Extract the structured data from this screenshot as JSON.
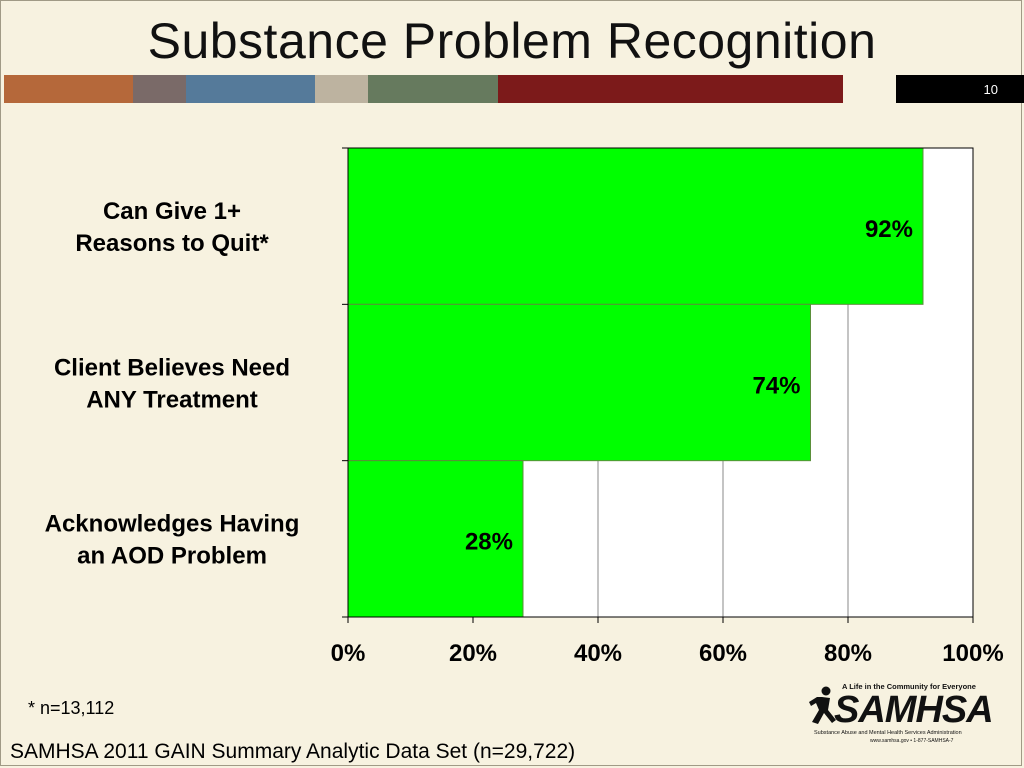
{
  "slide": {
    "title": "Substance Problem Recognition",
    "slide_number": "10",
    "footnote": "* n=13,112",
    "source": "SAMHSA 2011 GAIN Summary Analytic Data Set (n=29,722)",
    "colors": {
      "background": "#f7f2e0",
      "bar_fill": "#00ff00",
      "header_stripes": [
        "#b5683a",
        "#7a6a68",
        "#557a9a",
        "#bdb3a0",
        "#667a5e",
        "#7c1a1a",
        "#f7f2e0",
        "#000000"
      ]
    }
  },
  "logo": {
    "tagline": "A Life in the Community for Everyone",
    "wordmark": "SAMHSA",
    "subtitle": "Substance Abuse and Mental Health Services Administration",
    "web": "www.samhsa.gov • 1-877-SAMHSA-7",
    "icon": "running-figure-icon"
  },
  "chart_data": {
    "type": "bar",
    "orientation": "horizontal",
    "categories": [
      "Can Give 1+ Reasons to Quit*",
      "Client Believes Need ANY Treatment",
      "Acknowledges Having an AOD Problem"
    ],
    "category_lines": [
      [
        "Can Give 1+",
        "Reasons to Quit*"
      ],
      [
        "Client Believes Need",
        "ANY Treatment"
      ],
      [
        "Acknowledges Having",
        "an AOD Problem"
      ]
    ],
    "values": [
      92,
      74,
      28
    ],
    "data_labels": [
      "92%",
      "74%",
      "28%"
    ],
    "xlim": [
      0,
      100
    ],
    "x_ticks": [
      0,
      20,
      40,
      60,
      80,
      100
    ],
    "x_tick_labels": [
      "0%",
      "20%",
      "40%",
      "60%",
      "80%",
      "100%"
    ],
    "grid": "vertical",
    "legend": "none"
  }
}
